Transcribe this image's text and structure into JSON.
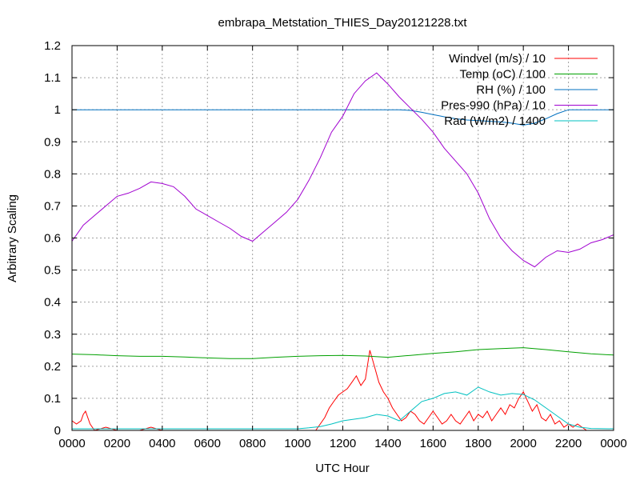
{
  "chart_data": {
    "type": "line",
    "title": "embrapa_Metstation_THIES_Day20121228.txt",
    "xlabel": "UTC Hour",
    "ylabel": "Arbitrary Scaling",
    "xlim": [
      0,
      24
    ],
    "ylim": [
      0,
      1.2
    ],
    "grid": true,
    "legend_position": "top-right",
    "x_ticks": [
      {
        "value": 0,
        "label": "0000"
      },
      {
        "value": 2,
        "label": "0200"
      },
      {
        "value": 4,
        "label": "0400"
      },
      {
        "value": 6,
        "label": "0600"
      },
      {
        "value": 8,
        "label": "0800"
      },
      {
        "value": 10,
        "label": "1000"
      },
      {
        "value": 12,
        "label": "1200"
      },
      {
        "value": 14,
        "label": "1400"
      },
      {
        "value": 16,
        "label": "1600"
      },
      {
        "value": 18,
        "label": "1800"
      },
      {
        "value": 20,
        "label": "2000"
      },
      {
        "value": 22,
        "label": "2200"
      },
      {
        "value": 24,
        "label": "0000"
      }
    ],
    "y_ticks": [
      {
        "value": 0,
        "label": "0"
      },
      {
        "value": 0.1,
        "label": "0.1"
      },
      {
        "value": 0.2,
        "label": "0.2"
      },
      {
        "value": 0.3,
        "label": "0.3"
      },
      {
        "value": 0.4,
        "label": "0.4"
      },
      {
        "value": 0.5,
        "label": "0.5"
      },
      {
        "value": 0.6,
        "label": "0.6"
      },
      {
        "value": 0.7,
        "label": "0.7"
      },
      {
        "value": 0.8,
        "label": "0.8"
      },
      {
        "value": 0.9,
        "label": "0.9"
      },
      {
        "value": 1,
        "label": "1"
      },
      {
        "value": 1.1,
        "label": "1.1"
      },
      {
        "value": 1.2,
        "label": "1.2"
      }
    ],
    "series": [
      {
        "name": "Windvel (m/s) / 10",
        "color": "#ff0000",
        "x": [
          0,
          0.2,
          0.4,
          0.5,
          0.6,
          0.8,
          1.0,
          1.5,
          2.0,
          2.5,
          3.0,
          3.5,
          4.0,
          5.0,
          6.0,
          7.0,
          8.0,
          9.0,
          10.0,
          10.8,
          11.0,
          11.2,
          11.4,
          11.6,
          11.8,
          12.0,
          12.2,
          12.4,
          12.6,
          12.8,
          13.0,
          13.2,
          13.4,
          13.6,
          13.8,
          14.0,
          14.2,
          14.4,
          14.6,
          14.8,
          15.0,
          15.2,
          15.4,
          15.6,
          15.8,
          16.0,
          16.2,
          16.4,
          16.6,
          16.8,
          17.0,
          17.2,
          17.4,
          17.6,
          17.8,
          18.0,
          18.2,
          18.4,
          18.6,
          18.8,
          19.0,
          19.2,
          19.4,
          19.6,
          19.8,
          20.0,
          20.2,
          20.4,
          20.6,
          20.8,
          21.0,
          21.2,
          21.4,
          21.6,
          21.8,
          22.0,
          22.2,
          22.4,
          22.6,
          22.8,
          23.0,
          24.0
        ],
        "values": [
          0.03,
          0.02,
          0.03,
          0.05,
          0.06,
          0.02,
          0,
          0.01,
          0,
          0,
          0,
          0.01,
          0,
          0,
          0,
          0,
          0,
          0,
          0,
          0,
          0.02,
          0.04,
          0.07,
          0.09,
          0.11,
          0.12,
          0.13,
          0.15,
          0.17,
          0.14,
          0.16,
          0.25,
          0.2,
          0.15,
          0.12,
          0.1,
          0.07,
          0.05,
          0.03,
          0.04,
          0.06,
          0.05,
          0.03,
          0.02,
          0.04,
          0.06,
          0.04,
          0.02,
          0.03,
          0.05,
          0.03,
          0.02,
          0.04,
          0.06,
          0.03,
          0.05,
          0.04,
          0.06,
          0.03,
          0.05,
          0.07,
          0.05,
          0.08,
          0.07,
          0.1,
          0.12,
          0.09,
          0.06,
          0.08,
          0.04,
          0.03,
          0.05,
          0.02,
          0.03,
          0.01,
          0.02,
          0.01,
          0.02,
          0.01,
          0,
          0,
          0
        ]
      },
      {
        "name": "Temp (oC) / 100",
        "color": "#00a000",
        "x": [
          0,
          1,
          2,
          3,
          4,
          5,
          6,
          7,
          8,
          9,
          10,
          11,
          12,
          13,
          14,
          15,
          16,
          17,
          18,
          19,
          20,
          21,
          22,
          23,
          24
        ],
        "values": [
          0.238,
          0.236,
          0.233,
          0.231,
          0.231,
          0.229,
          0.226,
          0.224,
          0.224,
          0.228,
          0.231,
          0.233,
          0.234,
          0.232,
          0.228,
          0.234,
          0.24,
          0.245,
          0.252,
          0.255,
          0.258,
          0.252,
          0.245,
          0.239,
          0.235
        ]
      },
      {
        "name": "RH (%) / 100",
        "color": "#0070c0",
        "x": [
          0,
          14.5,
          15.0,
          15.5,
          16.0,
          16.5,
          17.0,
          17.5,
          18.0,
          18.5,
          19.0,
          19.5,
          20.0,
          20.5,
          21.0,
          21.5,
          22.0,
          24.0
        ],
        "values": [
          1.0,
          1.0,
          0.998,
          0.992,
          0.985,
          0.978,
          0.972,
          0.968,
          0.966,
          0.964,
          0.962,
          0.958,
          0.952,
          0.958,
          0.972,
          0.988,
          1.0,
          1.0
        ]
      },
      {
        "name": "Pres-990 (hPa) / 10",
        "color": "#a000d0",
        "x": [
          0,
          0.5,
          1,
          1.5,
          2,
          2.5,
          3,
          3.5,
          4,
          4.5,
          5,
          5.5,
          6,
          6.5,
          7,
          7.5,
          8,
          8.5,
          9,
          9.5,
          10,
          10.5,
          11,
          11.5,
          12,
          12.5,
          13,
          13.5,
          14,
          14.5,
          15,
          15.5,
          16,
          16.5,
          17,
          17.5,
          18,
          18.5,
          19,
          19.5,
          20,
          20.5,
          21,
          21.5,
          22,
          22.5,
          23,
          23.5,
          24
        ],
        "values": [
          0.59,
          0.64,
          0.67,
          0.7,
          0.73,
          0.74,
          0.755,
          0.775,
          0.77,
          0.76,
          0.73,
          0.69,
          0.67,
          0.65,
          0.63,
          0.605,
          0.59,
          0.62,
          0.65,
          0.68,
          0.72,
          0.78,
          0.85,
          0.93,
          0.98,
          1.05,
          1.09,
          1.115,
          1.08,
          1.04,
          1.005,
          0.97,
          0.93,
          0.88,
          0.84,
          0.8,
          0.74,
          0.66,
          0.6,
          0.56,
          0.53,
          0.51,
          0.54,
          0.56,
          0.555,
          0.565,
          0.585,
          0.595,
          0.61
        ]
      },
      {
        "name": "Rad (W/m2) / 1400",
        "color": "#00c0c0",
        "x": [
          0,
          10.0,
          10.5,
          11.0,
          11.5,
          12.0,
          12.5,
          13.0,
          13.5,
          14.0,
          14.5,
          15.0,
          15.5,
          16.0,
          16.5,
          17.0,
          17.5,
          18.0,
          18.5,
          19.0,
          19.5,
          20.0,
          20.5,
          21.0,
          21.5,
          22.0,
          22.5,
          23.0,
          24.0
        ],
        "values": [
          0.005,
          0.005,
          0.008,
          0.012,
          0.02,
          0.03,
          0.035,
          0.04,
          0.05,
          0.045,
          0.03,
          0.06,
          0.09,
          0.1,
          0.115,
          0.12,
          0.11,
          0.135,
          0.12,
          0.11,
          0.115,
          0.112,
          0.095,
          0.07,
          0.045,
          0.02,
          0.01,
          0.006,
          0.005
        ]
      }
    ]
  }
}
